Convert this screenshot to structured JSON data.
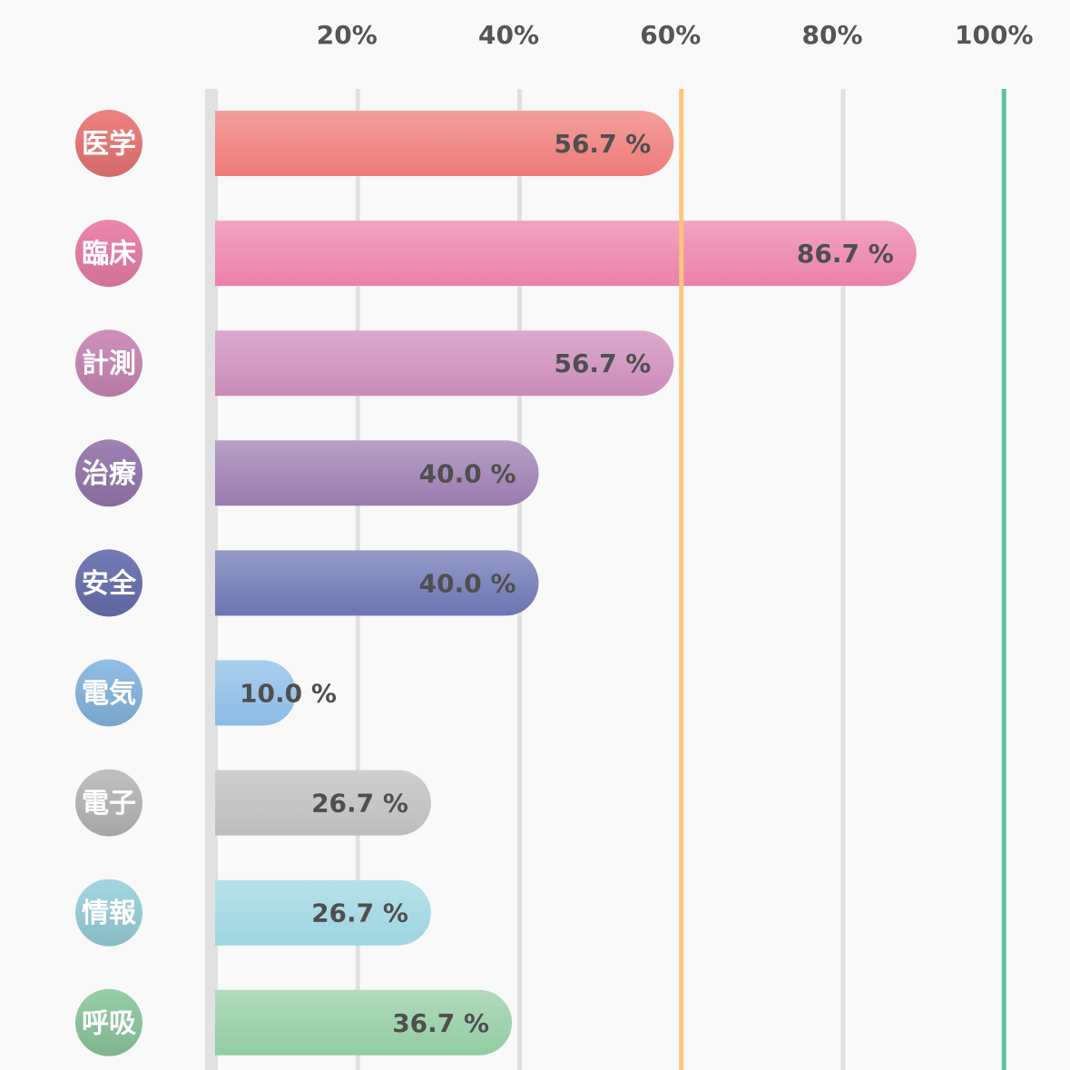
{
  "chart_data": {
    "type": "bar",
    "orientation": "horizontal",
    "xlim": [
      0,
      100
    ],
    "x_ticks": [
      20,
      40,
      60,
      80,
      100
    ],
    "x_tick_labels": [
      "20%",
      "40%",
      "60%",
      "80%",
      "100%"
    ],
    "grid": true,
    "reference_lines": [
      {
        "value": 60,
        "color": "#ffc47e"
      },
      {
        "value": 100,
        "color": "#5fc29e"
      }
    ],
    "categories": [
      "医学",
      "臨床",
      "計測",
      "治療",
      "安全",
      "電気",
      "電子",
      "情報",
      "呼吸"
    ],
    "values": [
      56.7,
      86.7,
      56.7,
      40.0,
      40.0,
      10.0,
      26.7,
      26.7,
      36.7
    ],
    "value_labels": [
      "56.7 %",
      "86.7 %",
      "56.7 %",
      "40.0 %",
      "40.0 %",
      "10.0 %",
      "26.7 %",
      "26.7 %",
      "36.7 %"
    ],
    "colors": [
      "#ee7a77",
      "#ec80aa",
      "#cc8bb8",
      "#9a7bb0",
      "#6c74b3",
      "#8bbbe5",
      "#bdbdbd",
      "#9dd5e0",
      "#92cca2"
    ]
  }
}
